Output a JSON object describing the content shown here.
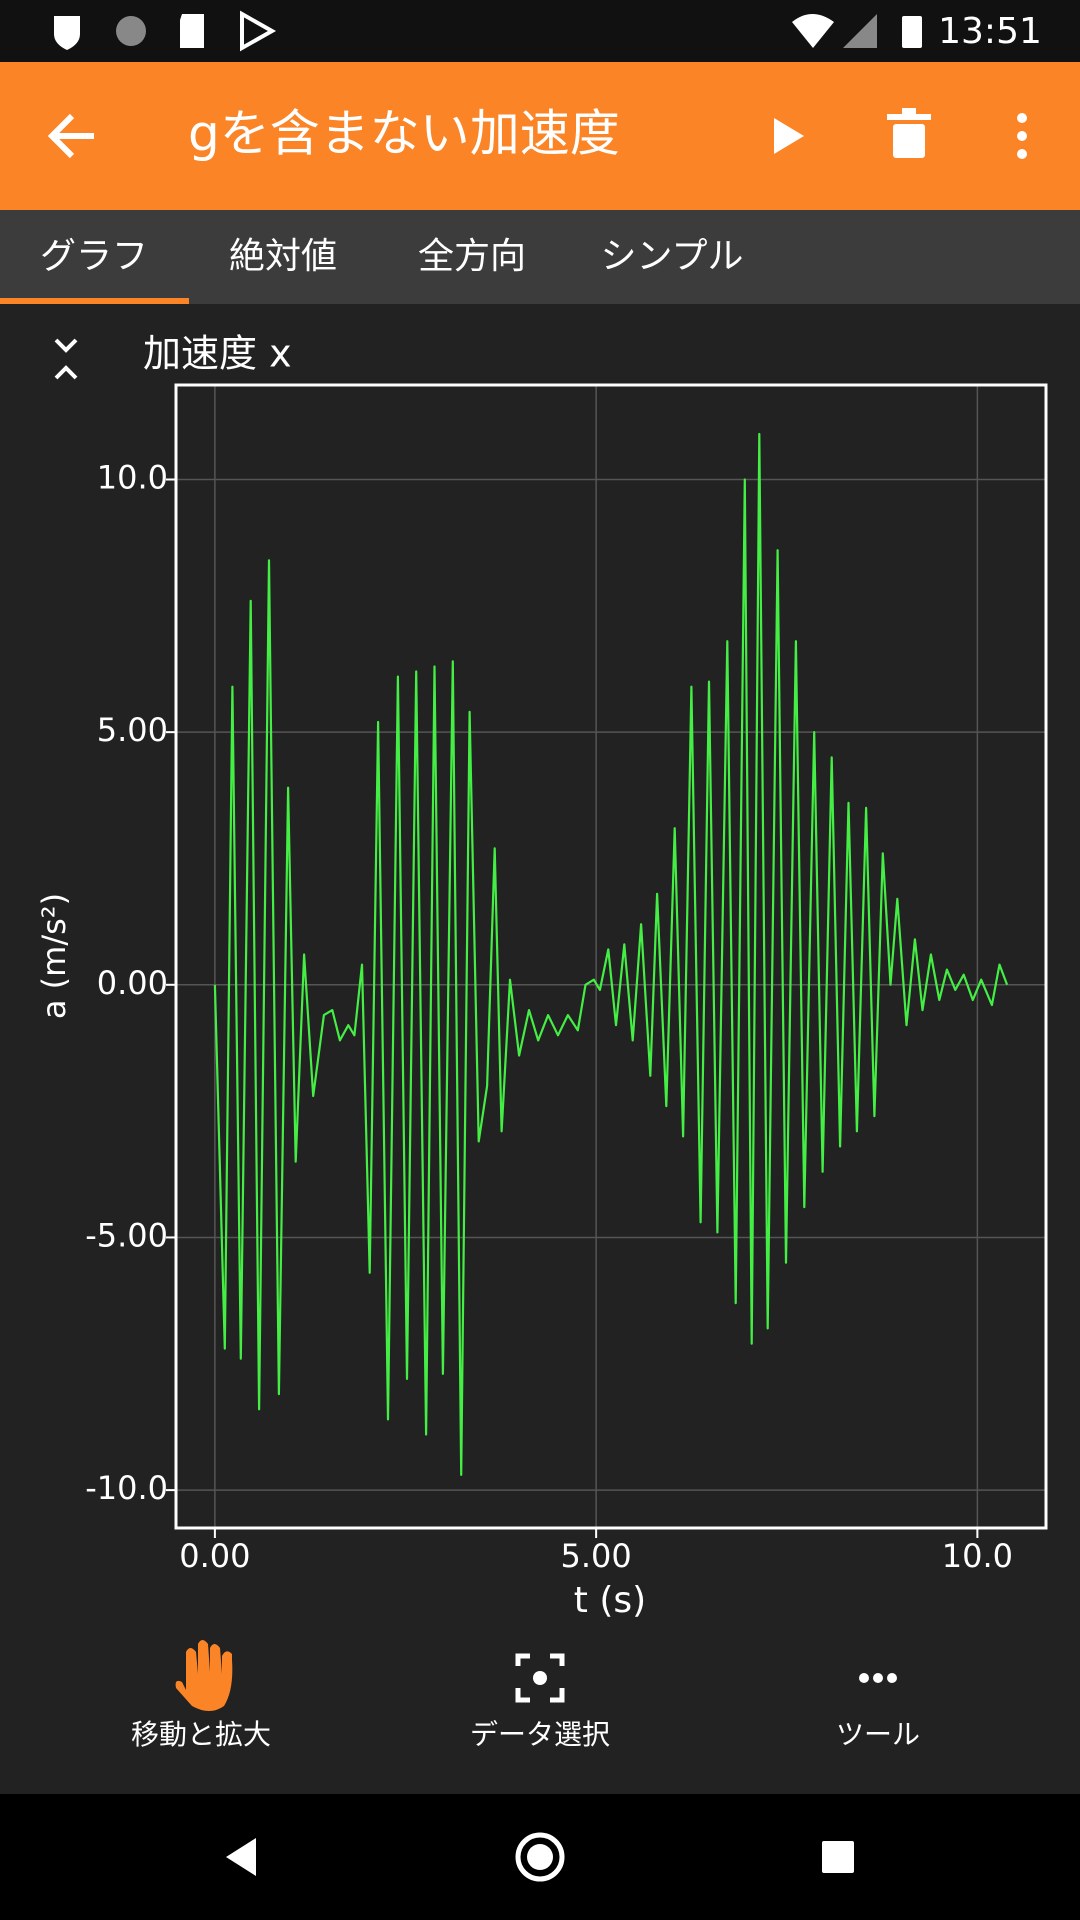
{
  "status_bar": {
    "time": "13:51"
  },
  "app_bar": {
    "title": "gを含まない加速度"
  },
  "tabs": [
    "グラフ",
    "絶対値",
    "全方向",
    "シンプル"
  ],
  "chart_data": {
    "type": "line",
    "title": "加速度 x",
    "x_label": "t (s)",
    "y_label": "a (m/s²)",
    "color": "#44ee44",
    "grid": true,
    "x": [
      0,
      0.13,
      0.23,
      0.34,
      0.47,
      0.58,
      0.71,
      0.84,
      0.96,
      1.06,
      1.17,
      1.29,
      1.43,
      1.54,
      1.64,
      1.75,
      1.83,
      1.93,
      2.03,
      2.14,
      2.27,
      2.4,
      2.52,
      2.64,
      2.77,
      2.88,
      2.99,
      3.12,
      3.23,
      3.34,
      3.46,
      3.57,
      3.67,
      3.76,
      3.87,
      3.99,
      4.12,
      4.24,
      4.37,
      4.5,
      4.63,
      4.76,
      4.86,
      4.97,
      5.05,
      5.16,
      5.26,
      5.37,
      5.48,
      5.59,
      5.71,
      5.8,
      5.92,
      6.03,
      6.14,
      6.25,
      6.37,
      6.48,
      6.59,
      6.72,
      6.83,
      6.95,
      7.04,
      7.14,
      7.25,
      7.38,
      7.49,
      7.62,
      7.73,
      7.86,
      7.97,
      8.09,
      8.2,
      8.31,
      8.42,
      8.54,
      8.65,
      8.76,
      8.86,
      8.95,
      9.07,
      9.18,
      9.28,
      9.39,
      9.5,
      9.6,
      9.71,
      9.82,
      9.94,
      10.05,
      10.19,
      10.29,
      10.39
    ],
    "values": [
      0,
      -7.2,
      5.9,
      -7.4,
      7.6,
      -8.4,
      8.4,
      -8.1,
      3.9,
      -3.5,
      0.6,
      -2.2,
      -0.6,
      -0.5,
      -1.1,
      -0.8,
      -1.0,
      0.4,
      -5.7,
      5.2,
      -8.6,
      6.1,
      -7.8,
      6.2,
      -8.9,
      6.3,
      -7.7,
      6.4,
      -9.7,
      5.4,
      -3.1,
      -2.0,
      2.7,
      -2.9,
      0.1,
      -1.4,
      -0.5,
      -1.1,
      -0.6,
      -1.0,
      -0.6,
      -0.9,
      0.0,
      0.1,
      -0.1,
      0.7,
      -0.8,
      0.8,
      -1.1,
      1.2,
      -1.8,
      1.8,
      -2.4,
      3.1,
      -3.0,
      5.9,
      -4.7,
      6.0,
      -4.9,
      6.8,
      -6.3,
      10.0,
      -7.1,
      10.9,
      -6.8,
      8.6,
      -5.5,
      6.8,
      -4.4,
      5.0,
      -3.7,
      4.5,
      -3.2,
      3.6,
      -2.9,
      3.5,
      -2.6,
      2.6,
      0.0,
      1.7,
      -0.8,
      0.9,
      -0.5,
      0.6,
      -0.3,
      0.3,
      -0.1,
      0.2,
      -0.3,
      0.1,
      -0.4,
      0.4,
      0.0
    ],
    "xlim": [
      -0.51,
      10.9
    ],
    "ylim": [
      -10.75,
      11.87
    ],
    "xticks": [
      {
        "value": 0,
        "label": "0.00"
      },
      {
        "value": 5,
        "label": "5.00"
      },
      {
        "value": 10,
        "label": "10.0"
      }
    ],
    "yticks": [
      {
        "value": -10,
        "label": "-10.0"
      },
      {
        "value": -5,
        "label": "-5.00"
      },
      {
        "value": 0,
        "label": "0.00"
      },
      {
        "value": 5,
        "label": "5.00"
      },
      {
        "value": 10,
        "label": "10.0"
      }
    ]
  },
  "toolbar": [
    "移動と拡大",
    "データ選択",
    "ツール"
  ]
}
